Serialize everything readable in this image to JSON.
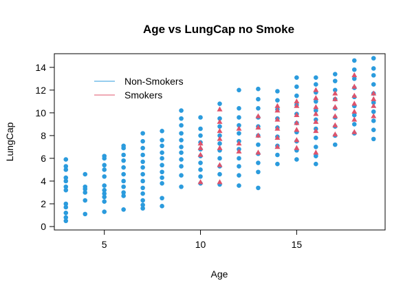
{
  "chart_data": {
    "type": "scatter",
    "title": "Age vs LungCap no Smoke",
    "xlabel": "Age",
    "ylabel": "LungCap",
    "xlim": [
      2.4,
      19.6
    ],
    "ylim": [
      -0.3,
      15.2
    ],
    "xticks": [
      5,
      10,
      15
    ],
    "yticks": [
      0,
      2,
      4,
      6,
      8,
      10,
      12,
      14
    ],
    "grid": false,
    "legend_position": "top-left",
    "colors": {
      "non_smokers": "#2B9BDD",
      "smokers": "#DF536B"
    },
    "series": [
      {
        "name": "Non-Smokers",
        "marker": "circle",
        "points": [
          [
            3,
            0.5
          ],
          [
            3,
            0.8
          ],
          [
            3,
            1.2
          ],
          [
            3,
            1.7
          ],
          [
            3,
            2.0
          ],
          [
            3,
            3.2
          ],
          [
            3,
            3.5
          ],
          [
            3,
            4.0
          ],
          [
            3,
            4.3
          ],
          [
            3,
            5.0
          ],
          [
            3,
            5.3
          ],
          [
            3,
            5.9
          ],
          [
            4,
            1.1
          ],
          [
            4,
            2.3
          ],
          [
            4,
            3.0
          ],
          [
            4,
            3.3
          ],
          [
            4,
            3.5
          ],
          [
            4,
            4.6
          ],
          [
            5,
            1.3
          ],
          [
            5,
            2.2
          ],
          [
            5,
            2.6
          ],
          [
            5,
            2.9
          ],
          [
            5,
            3.2
          ],
          [
            5,
            3.6
          ],
          [
            5,
            4.4
          ],
          [
            5,
            5.0
          ],
          [
            5,
            5.4
          ],
          [
            5,
            6.0
          ],
          [
            5,
            6.2
          ],
          [
            6,
            1.5
          ],
          [
            6,
            2.7
          ],
          [
            6,
            3.0
          ],
          [
            6,
            3.5
          ],
          [
            6,
            4.0
          ],
          [
            6,
            4.6
          ],
          [
            6,
            5.2
          ],
          [
            6,
            5.8
          ],
          [
            6,
            6.3
          ],
          [
            6,
            6.9
          ],
          [
            6,
            7.1
          ],
          [
            7,
            1.6
          ],
          [
            7,
            1.9
          ],
          [
            7,
            2.3
          ],
          [
            7,
            2.9
          ],
          [
            7,
            3.4
          ],
          [
            7,
            4.0
          ],
          [
            7,
            4.6
          ],
          [
            7,
            5.2
          ],
          [
            7,
            5.7
          ],
          [
            7,
            6.3
          ],
          [
            7,
            6.9
          ],
          [
            7,
            7.5
          ],
          [
            7,
            8.2
          ],
          [
            8,
            1.8
          ],
          [
            8,
            2.5
          ],
          [
            8,
            3.8
          ],
          [
            8,
            4.3
          ],
          [
            8,
            4.8
          ],
          [
            8,
            5.4
          ],
          [
            8,
            6.0
          ],
          [
            8,
            6.5
          ],
          [
            8,
            7.1
          ],
          [
            8,
            7.6
          ],
          [
            8,
            8.4
          ],
          [
            9,
            3.5
          ],
          [
            9,
            4.5
          ],
          [
            9,
            5.3
          ],
          [
            9,
            5.9
          ],
          [
            9,
            6.5
          ],
          [
            9,
            7.0
          ],
          [
            9,
            7.6
          ],
          [
            9,
            8.2
          ],
          [
            9,
            8.9
          ],
          [
            9,
            9.5
          ],
          [
            9,
            10.2
          ],
          [
            10,
            3.8
          ],
          [
            10,
            4.4
          ],
          [
            10,
            5.0
          ],
          [
            10,
            5.6
          ],
          [
            10,
            6.2
          ],
          [
            10,
            6.8
          ],
          [
            10,
            7.4
          ],
          [
            10,
            8.0
          ],
          [
            10,
            8.6
          ],
          [
            10,
            9.6
          ],
          [
            11,
            3.7
          ],
          [
            11,
            4.6
          ],
          [
            11,
            5.3
          ],
          [
            11,
            6.0
          ],
          [
            11,
            6.7
          ],
          [
            11,
            7.3
          ],
          [
            11,
            8.0
          ],
          [
            11,
            8.8
          ],
          [
            11,
            9.5
          ],
          [
            11,
            10.8
          ],
          [
            12,
            3.6
          ],
          [
            12,
            4.5
          ],
          [
            12,
            5.3
          ],
          [
            12,
            6.0
          ],
          [
            12,
            6.8
          ],
          [
            12,
            7.5
          ],
          [
            12,
            8.2
          ],
          [
            12,
            8.9
          ],
          [
            12,
            9.6
          ],
          [
            12,
            10.4
          ],
          [
            12,
            12.0
          ],
          [
            13,
            3.4
          ],
          [
            13,
            4.8
          ],
          [
            13,
            5.6
          ],
          [
            13,
            6.4
          ],
          [
            13,
            7.2
          ],
          [
            13,
            8.0
          ],
          [
            13,
            8.8
          ],
          [
            13,
            9.6
          ],
          [
            13,
            10.4
          ],
          [
            13,
            11.2
          ],
          [
            13,
            12.1
          ],
          [
            14,
            5.5
          ],
          [
            14,
            6.3
          ],
          [
            14,
            7.1
          ],
          [
            14,
            7.9
          ],
          [
            14,
            8.7
          ],
          [
            14,
            9.5
          ],
          [
            14,
            10.3
          ],
          [
            14,
            11.1
          ],
          [
            14,
            11.9
          ],
          [
            15,
            5.9
          ],
          [
            15,
            6.7
          ],
          [
            15,
            7.5
          ],
          [
            15,
            8.3
          ],
          [
            15,
            9.1
          ],
          [
            15,
            9.9
          ],
          [
            15,
            10.7
          ],
          [
            15,
            11.5
          ],
          [
            15,
            12.3
          ],
          [
            15,
            13.1
          ],
          [
            16,
            5.5
          ],
          [
            16,
            6.2
          ],
          [
            16,
            7.0
          ],
          [
            16,
            7.8
          ],
          [
            16,
            8.6
          ],
          [
            16,
            9.4
          ],
          [
            16,
            10.2
          ],
          [
            16,
            11.0
          ],
          [
            16,
            11.8
          ],
          [
            16,
            12.5
          ],
          [
            16,
            13.1
          ],
          [
            17,
            7.2
          ],
          [
            17,
            8.0
          ],
          [
            17,
            8.8
          ],
          [
            17,
            9.6
          ],
          [
            17,
            10.4
          ],
          [
            17,
            11.2
          ],
          [
            17,
            12.0
          ],
          [
            17,
            12.8
          ],
          [
            17,
            13.4
          ],
          [
            18,
            8.2
          ],
          [
            18,
            9.0
          ],
          [
            18,
            9.8
          ],
          [
            18,
            10.6
          ],
          [
            18,
            11.4
          ],
          [
            18,
            12.2
          ],
          [
            18,
            13.0
          ],
          [
            18,
            13.8
          ],
          [
            18,
            14.6
          ],
          [
            19,
            7.7
          ],
          [
            19,
            8.5
          ],
          [
            19,
            9.3
          ],
          [
            19,
            10.1
          ],
          [
            19,
            10.9
          ],
          [
            19,
            11.7
          ],
          [
            19,
            12.5
          ],
          [
            19,
            13.3
          ],
          [
            19,
            13.9
          ],
          [
            19,
            14.8
          ]
        ]
      },
      {
        "name": "Smokers",
        "marker": "triangle",
        "points": [
          [
            10,
            3.9
          ],
          [
            10,
            6.3
          ],
          [
            10,
            6.9
          ],
          [
            10,
            7.3
          ],
          [
            11,
            3.9
          ],
          [
            11,
            5.4
          ],
          [
            11,
            6.9
          ],
          [
            11,
            7.7
          ],
          [
            11,
            8.4
          ],
          [
            11,
            9.2
          ],
          [
            11,
            10.3
          ],
          [
            12,
            6.6
          ],
          [
            12,
            7.3
          ],
          [
            12,
            8.6
          ],
          [
            13,
            6.5
          ],
          [
            13,
            8.0
          ],
          [
            13,
            8.7
          ],
          [
            13,
            9.7
          ],
          [
            14,
            7.0
          ],
          [
            14,
            7.8
          ],
          [
            14,
            8.6
          ],
          [
            14,
            9.4
          ],
          [
            14,
            10.2
          ],
          [
            14,
            10.6
          ],
          [
            15,
            6.9
          ],
          [
            15,
            7.6
          ],
          [
            15,
            8.5
          ],
          [
            15,
            9.1
          ],
          [
            15,
            9.8
          ],
          [
            15,
            10.6
          ],
          [
            15,
            11.0
          ],
          [
            16,
            6.5
          ],
          [
            16,
            8.4
          ],
          [
            16,
            9.2
          ],
          [
            16,
            9.9
          ],
          [
            16,
            10.5
          ],
          [
            16,
            11.3
          ],
          [
            16,
            12.0
          ],
          [
            17,
            8.1
          ],
          [
            17,
            8.9
          ],
          [
            17,
            9.7
          ],
          [
            17,
            10.5
          ],
          [
            17,
            11.2
          ],
          [
            17,
            11.7
          ],
          [
            18,
            8.3
          ],
          [
            18,
            9.4
          ],
          [
            18,
            10.1
          ],
          [
            18,
            10.8
          ],
          [
            18,
            11.5
          ],
          [
            18,
            12.3
          ],
          [
            18,
            13.3
          ],
          [
            19,
            9.7
          ],
          [
            19,
            10.6
          ],
          [
            19,
            11.2
          ],
          [
            19,
            11.7
          ]
        ]
      }
    ]
  }
}
